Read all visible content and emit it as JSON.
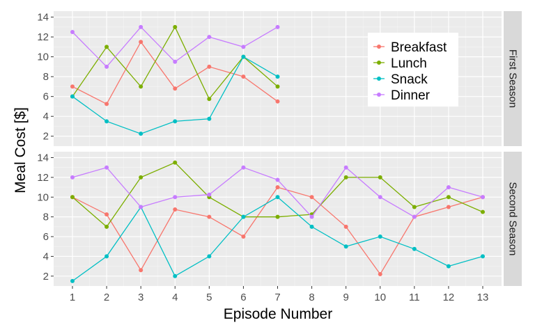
{
  "chart_data": {
    "type": "line",
    "xlabel": "Episode Number",
    "ylabel": "Meal Cost [$]",
    "x_ticks": [
      1,
      2,
      3,
      4,
      5,
      6,
      7,
      8,
      9,
      10,
      11,
      12,
      13
    ],
    "y_ticks": [
      2,
      4,
      6,
      8,
      10,
      12,
      14
    ],
    "xlim": [
      0.45,
      13.55
    ],
    "ylim": [
      1,
      14.6
    ],
    "grid": true,
    "legend_position": "top-right (inside first panel)",
    "colors": {
      "Breakfast": "#F8766D",
      "Lunch": "#7CAE00",
      "Snack": "#00BFC4",
      "Dinner": "#C77CFF",
      "panel_background": "#EBEBEB",
      "strip_background": "#D9D9D9"
    },
    "facets": [
      {
        "label": "First Season",
        "series": [
          {
            "name": "Breakfast",
            "x": [
              1,
              2,
              3,
              4,
              5,
              6,
              7
            ],
            "values": [
              7,
              5.25,
              11.5,
              6.8,
              9,
              8,
              5.5
            ]
          },
          {
            "name": "Lunch",
            "x": [
              1,
              2,
              3,
              4,
              5,
              6,
              7
            ],
            "values": [
              6,
              11,
              7,
              13,
              5.75,
              10,
              7
            ]
          },
          {
            "name": "Snack",
            "x": [
              1,
              2,
              3,
              4,
              5,
              6,
              7
            ],
            "values": [
              6,
              3.5,
              2.25,
              3.5,
              3.75,
              10,
              8
            ]
          },
          {
            "name": "Dinner",
            "x": [
              1,
              2,
              3,
              4,
              5,
              6,
              7
            ],
            "values": [
              12.5,
              9,
              13,
              9.5,
              12,
              11,
              13
            ]
          }
        ]
      },
      {
        "label": "Second Season",
        "series": [
          {
            "name": "Breakfast",
            "x": [
              1,
              2,
              3,
              4,
              5,
              6,
              7,
              8,
              9,
              10,
              11,
              12,
              13
            ],
            "values": [
              10,
              8.25,
              2.6,
              8.75,
              8,
              6,
              11,
              10,
              7,
              2.2,
              8,
              9,
              10
            ]
          },
          {
            "name": "Lunch",
            "x": [
              1,
              2,
              3,
              4,
              5,
              6,
              7,
              8,
              9,
              10,
              11,
              12,
              13
            ],
            "values": [
              10,
              7,
              12,
              13.5,
              10,
              8,
              8,
              8.25,
              12,
              12,
              9,
              10,
              8.5
            ]
          },
          {
            "name": "Snack",
            "x": [
              1,
              2,
              3,
              4,
              5,
              6,
              7,
              8,
              9,
              10,
              11,
              12,
              13
            ],
            "values": [
              1.5,
              4,
              9,
              2,
              4,
              8,
              10,
              7,
              5,
              6,
              4.75,
              3,
              4
            ]
          },
          {
            "name": "Dinner",
            "x": [
              1,
              2,
              3,
              4,
              5,
              6,
              7,
              8,
              9,
              10,
              11,
              12,
              13
            ],
            "values": [
              12,
              13,
              9,
              10,
              10.25,
              13,
              11.75,
              8,
              13,
              10,
              8,
              11,
              10
            ]
          }
        ]
      }
    ]
  }
}
